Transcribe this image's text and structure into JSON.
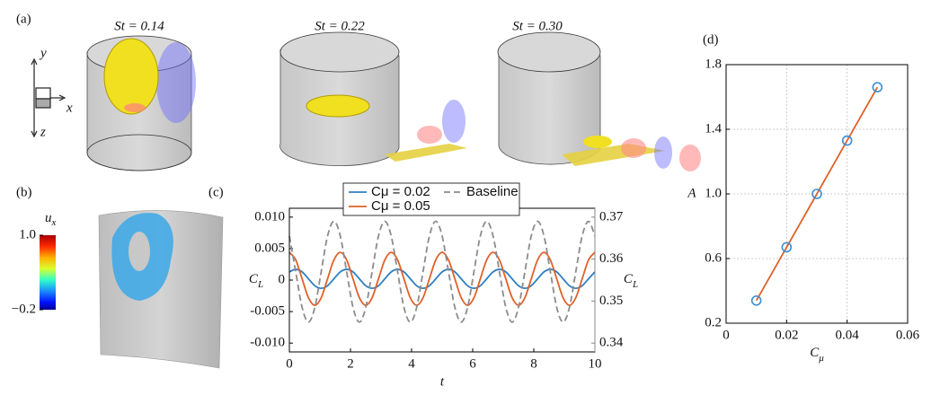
{
  "panel_a": {
    "label": "(a)",
    "views": [
      "St = 0.14",
      "St = 0.22",
      "St = 0.30"
    ],
    "axes": [
      "y",
      "x",
      "z"
    ]
  },
  "panel_b": {
    "label": "(b)",
    "colorbar": {
      "title": {
        "text": "u",
        "subscript": "x"
      },
      "range": [
        -0.2,
        1.0
      ],
      "ticks": [
        {
          "value": 1.0,
          "label": "1.0"
        },
        {
          "value": -0.2,
          "label": "−0.2"
        }
      ]
    }
  },
  "chart_data": [
    {
      "type": "line",
      "panel_label": "(c)",
      "xlabel": "t",
      "ylabel": {
        "text": "C",
        "subscript": "L"
      },
      "y2label": {
        "text": "C",
        "subscript": "L"
      },
      "xlim": [
        0,
        10
      ],
      "xticks": [
        0,
        2,
        4,
        6,
        8,
        10
      ],
      "ylim": [
        -0.0114,
        0.0114
      ],
      "yticks": [
        {
          "value": -0.01,
          "label": "-0.010"
        },
        {
          "value": -0.005,
          "label": "-0.005"
        },
        0,
        {
          "value": 0.005,
          "label": "0.005"
        },
        {
          "value": 0.01,
          "label": "0.010"
        }
      ],
      "y2lim": [
        0.3379,
        0.3721
      ],
      "y2ticks": [
        0.34,
        0.35,
        0.36,
        0.37
      ],
      "grid": false,
      "legend": "upper center",
      "x": [
        0,
        0.2083,
        0.4167,
        0.625,
        0.8333,
        1.0417,
        1.25,
        1.4583,
        1.6667,
        1.875,
        2.0833,
        2.2917,
        2.5,
        2.7083,
        2.9167,
        3.125,
        3.3333,
        3.5417,
        3.75,
        3.9583,
        4.1667,
        4.375,
        4.5833,
        4.7917,
        5,
        5.2083,
        5.4167,
        5.625,
        5.8333,
        6.0417,
        6.25,
        6.4583,
        6.6667,
        6.875,
        7.0833,
        7.2917,
        7.5,
        7.7083,
        7.9167,
        8.125,
        8.3333,
        8.5417,
        8.75,
        8.9583,
        9.1667,
        9.375,
        9.5833,
        9.7917,
        10
      ],
      "series": [
        {
          "name": "Cμ = 0.02",
          "color": "#2f7fc1",
          "linestyle": "solid",
          "values": [
            0.0013,
            0.0017,
            0.0013,
            0.0002,
            -0.0009,
            -0.0013,
            -0.0009,
            0.0002,
            0.0013,
            0.0017,
            0.0013,
            0.0002,
            -0.0009,
            -0.0013,
            -0.0009,
            0.0002,
            0.0013,
            0.0017,
            0.0013,
            0.0002,
            -0.0009,
            -0.0013,
            -0.0009,
            0.0002,
            0.0013,
            0.0017,
            0.0013,
            0.0002,
            -0.0009,
            -0.0013,
            -0.0009,
            0.0002,
            0.0013,
            0.0017,
            0.0013,
            0.0002,
            -0.0009,
            -0.0013,
            -0.0009,
            0.0002,
            0.0013,
            0.0017,
            0.0013,
            0.0002,
            -0.0009,
            -0.0013,
            -0.0009,
            0.0002,
            0.0013
          ]
        },
        {
          "name": "Cμ = 0.05",
          "color": "#e0602a",
          "linestyle": "solid",
          "values": [
            0.0044,
            0.0032,
            0.0002,
            -0.0028,
            -0.004,
            -0.0028,
            0.0002,
            0.0032,
            0.0044,
            0.0032,
            0.0002,
            -0.0028,
            -0.004,
            -0.0028,
            0.0002,
            0.0032,
            0.0044,
            0.0032,
            0.0002,
            -0.0028,
            -0.004,
            -0.0028,
            0.0002,
            0.0032,
            0.0044,
            0.0032,
            0.0002,
            -0.0028,
            -0.004,
            -0.0028,
            0.0002,
            0.0032,
            0.0044,
            0.0032,
            0.0002,
            -0.0028,
            -0.004,
            -0.0028,
            0.0002,
            0.0032,
            0.0044,
            0.0032,
            0.0002,
            -0.0028,
            -0.004,
            -0.0028,
            0.0002,
            0.0032,
            0.0044
          ]
        },
        {
          "name": "Baseline",
          "color": "#8c8c8c",
          "linestyle": "dashed",
          "axis": "y2",
          "values": [
            0.3655,
            0.357,
            0.3485,
            0.345,
            0.3485,
            0.357,
            0.3655,
            0.369,
            0.3655,
            0.357,
            0.3485,
            0.345,
            0.3485,
            0.357,
            0.3655,
            0.369,
            0.3655,
            0.357,
            0.3485,
            0.345,
            0.3485,
            0.357,
            0.3655,
            0.369,
            0.3655,
            0.357,
            0.3485,
            0.345,
            0.3485,
            0.357,
            0.3655,
            0.369,
            0.3655,
            0.357,
            0.3485,
            0.345,
            0.3485,
            0.357,
            0.3655,
            0.369,
            0.3655,
            0.357,
            0.3485,
            0.345,
            0.3485,
            0.357,
            0.3655,
            0.369,
            0.3655
          ]
        }
      ]
    },
    {
      "type": "line",
      "panel_label": "(d)",
      "xlabel": {
        "text": "C",
        "subscript": "μ"
      },
      "ylabel": "A",
      "xlim": [
        0,
        0.06
      ],
      "xticks": [
        0,
        0.02,
        0.04,
        0.06
      ],
      "ylim": [
        0.2,
        1.8
      ],
      "yticks": [
        0.2,
        0.6,
        {
          "value": 1.0,
          "label": "1.0"
        },
        1.4,
        1.8
      ],
      "grid": true,
      "x": [
        0.01,
        0.02,
        0.03,
        0.04,
        0.05
      ],
      "series": [
        {
          "color": "#e0602a",
          "marker_color": "#3b8fd4",
          "linestyle": "solid",
          "values": [
            0.34,
            0.67,
            1.0,
            1.33,
            1.66
          ]
        }
      ]
    }
  ]
}
